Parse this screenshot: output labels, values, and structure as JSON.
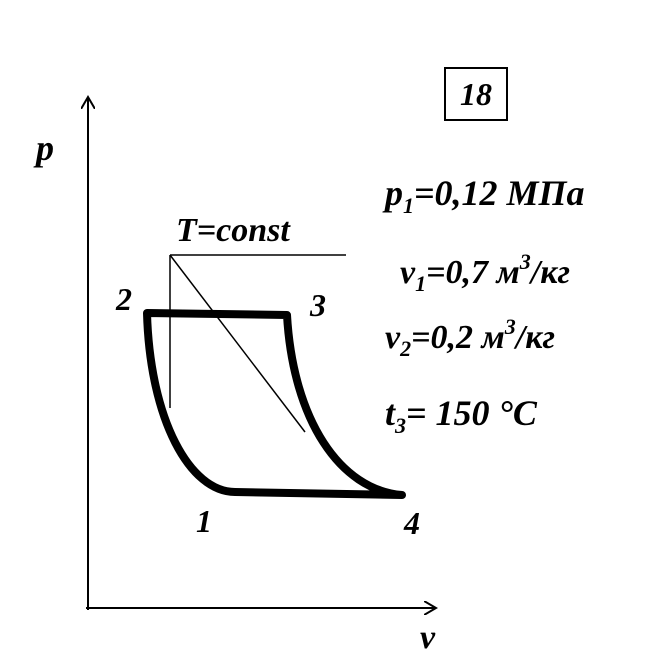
{
  "number": "18",
  "axes": {
    "y": "p",
    "x": "v"
  },
  "isotherm": "T=const",
  "points": [
    "1",
    "2",
    "3",
    "4"
  ],
  "params": [
    {
      "symbol": "p",
      "sub": "1",
      "text": "=0,12 МПа"
    },
    {
      "symbol": "v",
      "sub": "1",
      "text": "=0,7 м",
      "sup": "3",
      "unit": "/кг"
    },
    {
      "symbol": "v",
      "sub": "2",
      "text": "=0,2 м",
      "sup": "3",
      "unit": "/кг"
    },
    {
      "symbol": "t",
      "sub": "3",
      "text": "= 150 °C"
    }
  ]
}
